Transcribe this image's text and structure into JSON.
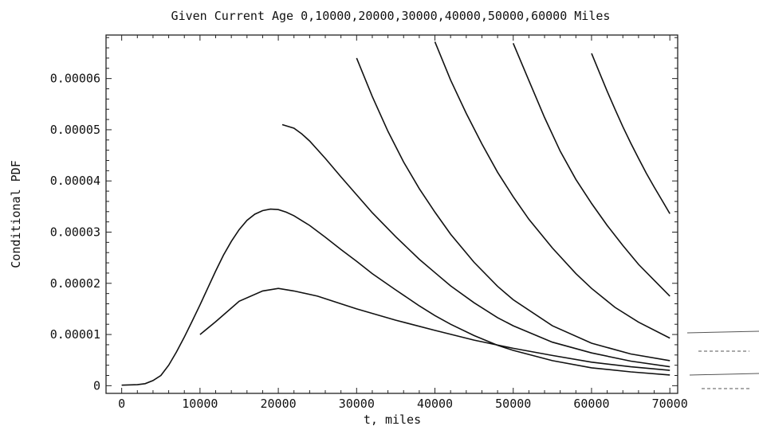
{
  "chart_data": {
    "type": "line",
    "title": "Given Current Age 0,10000,20000,30000,40000,50000,60000 Miles",
    "xlabel": "t, miles",
    "ylabel": "Conditional PDF",
    "xlim": [
      -2000,
      71000
    ],
    "ylim": [
      -1.5e-06,
      6.85e-05
    ],
    "x_ticks": [
      0,
      10000,
      20000,
      30000,
      40000,
      50000,
      60000,
      70000
    ],
    "x_tick_labels": [
      "0",
      "10000",
      "20000",
      "30000",
      "40000",
      "50000",
      "60000",
      "70000"
    ],
    "y_ticks": [
      0,
      1e-05,
      2e-05,
      3e-05,
      4e-05,
      5e-05,
      6e-05
    ],
    "y_tick_labels": [
      "0",
      "0.00001",
      "0.00002",
      "0.00003",
      "0.00004",
      "0.00005",
      "0.00006"
    ],
    "grid": false,
    "series": [
      {
        "x": [
          0,
          2000,
          3000,
          4000,
          5000,
          6000,
          7000,
          8000,
          9000,
          10000,
          11000,
          12000,
          13000,
          14000,
          15000,
          16000,
          17000,
          18000,
          19000,
          20000,
          21000,
          22000,
          24000,
          26000,
          28000,
          30000,
          32000,
          35000,
          38000,
          40000,
          42000,
          45000,
          48000,
          50000,
          55000,
          60000,
          65000,
          70000
        ],
        "y": [
          1e-07,
          2e-07,
          4e-07,
          1e-06,
          2e-06,
          4e-06,
          6.6e-06,
          9.5e-06,
          1.26e-05,
          1.58e-05,
          1.91e-05,
          2.24e-05,
          2.55e-05,
          2.82e-05,
          3.05e-05,
          3.23e-05,
          3.35e-05,
          3.42e-05,
          3.45e-05,
          3.44e-05,
          3.39e-05,
          3.32e-05,
          3.13e-05,
          2.9e-05,
          2.66e-05,
          2.43e-05,
          2.19e-05,
          1.87e-05,
          1.56e-05,
          1.37e-05,
          1.2e-05,
          9.8e-06,
          7.9e-06,
          6.9e-06,
          4.9e-06,
          3.5e-06,
          2.7e-06,
          2.1e-06
        ]
      },
      {
        "x": [
          10000,
          12000,
          15000,
          18000,
          20000,
          22000,
          25000,
          30000,
          35000,
          40000,
          45000,
          50000,
          55000,
          60000,
          65000,
          70000
        ],
        "y": [
          1e-05,
          1.25e-05,
          1.65e-05,
          1.85e-05,
          1.9e-05,
          1.85e-05,
          1.75e-05,
          1.5e-05,
          1.28e-05,
          1.08e-05,
          8.9e-06,
          7.3e-06,
          5.9e-06,
          4.6e-06,
          3.7e-06,
          3e-06
        ]
      },
      {
        "x": [
          20500,
          22000,
          23000,
          24000,
          26000,
          28000,
          30000,
          32000,
          35000,
          38000,
          40000,
          42000,
          45000,
          48000,
          50000,
          55000,
          60000,
          65000,
          70000
        ],
        "y": [
          5.1e-05,
          5.03e-05,
          4.92e-05,
          4.78e-05,
          4.44e-05,
          4.08e-05,
          3.73e-05,
          3.38e-05,
          2.91e-05,
          2.47e-05,
          2.21e-05,
          1.95e-05,
          1.62e-05,
          1.33e-05,
          1.17e-05,
          8.5e-06,
          6.4e-06,
          4.8e-06,
          3.7e-06
        ]
      },
      {
        "x": [
          30000,
          32000,
          34000,
          36000,
          38000,
          40000,
          42000,
          45000,
          48000,
          50000,
          55000,
          60000,
          65000,
          70000
        ],
        "y": [
          6.4e-05,
          5.65e-05,
          4.97e-05,
          4.37e-05,
          3.85e-05,
          3.39e-05,
          2.96e-05,
          2.41e-05,
          1.94e-05,
          1.68e-05,
          1.17e-05,
          8.3e-06,
          6.2e-06,
          4.9e-06
        ]
      },
      {
        "x": [
          40000,
          42000,
          44000,
          46000,
          48000,
          50000,
          52000,
          55000,
          58000,
          60000,
          63000,
          66000,
          70000
        ],
        "y": [
          6.72e-05,
          5.97e-05,
          5.32e-05,
          4.72e-05,
          4.17e-05,
          3.69e-05,
          3.25e-05,
          2.69e-05,
          2.19e-05,
          1.9e-05,
          1.53e-05,
          1.24e-05,
          9.3e-06
        ]
      },
      {
        "x": [
          50000,
          52000,
          54000,
          56000,
          58000,
          60000,
          62000,
          64000,
          66000,
          68000,
          70000
        ],
        "y": [
          6.69e-05,
          5.96e-05,
          5.24e-05,
          4.58e-05,
          4.03e-05,
          3.56e-05,
          3.13e-05,
          2.74e-05,
          2.37e-05,
          2.06e-05,
          1.75e-05
        ]
      },
      {
        "x": [
          60000,
          61000,
          62000,
          63000,
          64000,
          65000,
          66000,
          67000,
          68000,
          69000,
          70000
        ],
        "y": [
          6.49e-05,
          6.12e-05,
          5.75e-05,
          5.4e-05,
          5.06e-05,
          4.74e-05,
          4.44e-05,
          4.15e-05,
          3.88e-05,
          3.62e-05,
          3.36e-05
        ]
      }
    ]
  }
}
